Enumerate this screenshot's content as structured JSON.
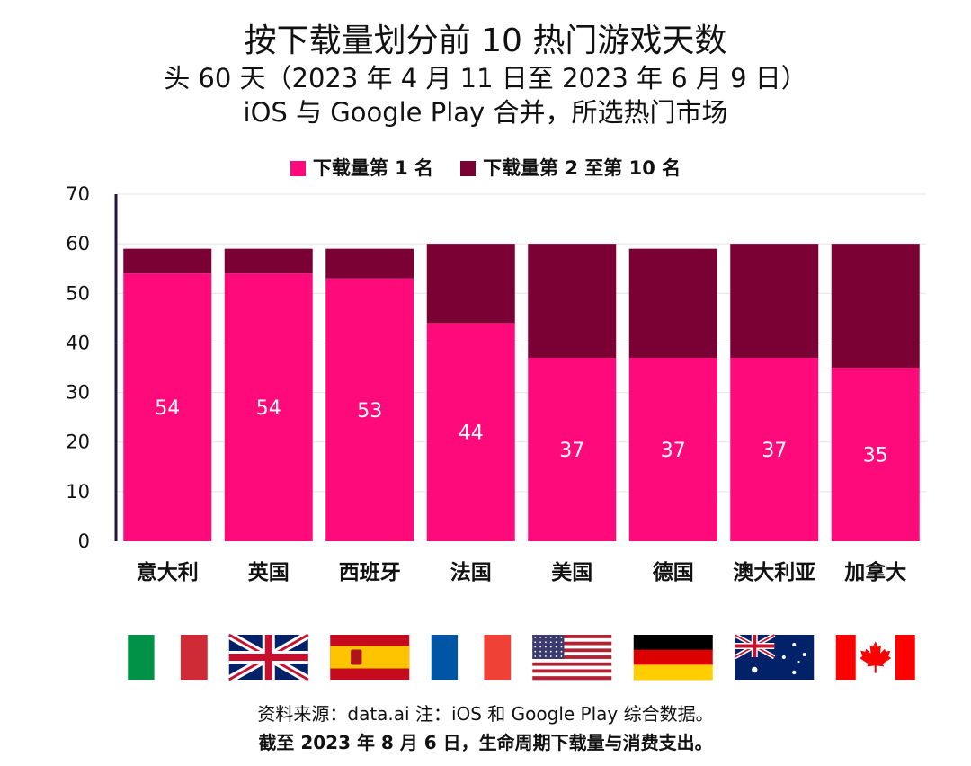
{
  "header": {
    "title": "按下载量划分前 10 热门游戏天数",
    "subtitle_1": "头 60 天（2023 年 4 月 11 日至 2023 年 6 月 9 日）",
    "subtitle_2": "iOS 与 Google Play 合并，所选热门市场"
  },
  "footer": {
    "note_1": "资料来源：data.ai 注：iOS 和 Google Play 综合数据。",
    "note_2": "截至 2023 年 8 月 6 日，生命周期下载量与消费支出。"
  },
  "chart_data": {
    "type": "bar",
    "stacked": true,
    "categories": [
      "意大利",
      "英国",
      "西班牙",
      "法国",
      "美国",
      "德国",
      "澳大利亚",
      "加拿大"
    ],
    "series": [
      {
        "name": "下载量第 1 名",
        "color": "#ff0a7a",
        "values": [
          54,
          54,
          53,
          44,
          37,
          37,
          37,
          35
        ]
      },
      {
        "name": "下载量第 2 至第 10 名",
        "color": "#7b0034",
        "values": [
          5,
          5,
          6,
          16,
          23,
          22,
          23,
          25
        ]
      }
    ],
    "data_labels_series": 0,
    "ylim": [
      0,
      70
    ],
    "yticks": [
      0,
      10,
      20,
      30,
      40,
      50,
      60,
      70
    ],
    "grid": true,
    "legend": "top-center",
    "flags": [
      "italy-flag",
      "uk-flag",
      "spain-flag",
      "france-flag",
      "usa-flag",
      "germany-flag",
      "australia-flag",
      "canada-flag"
    ]
  }
}
